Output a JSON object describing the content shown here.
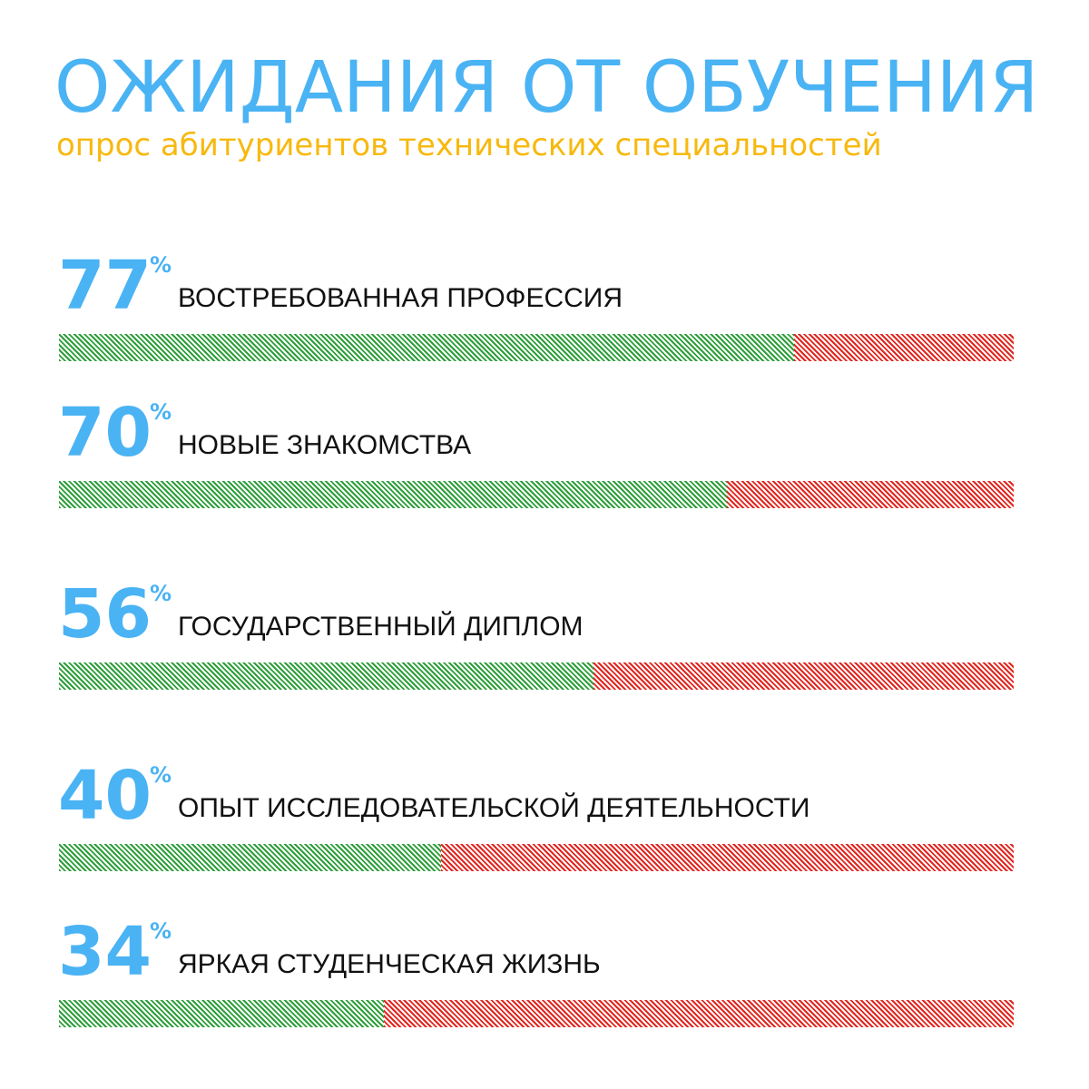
{
  "header": {
    "title": "ОЖИДАНИЯ ОТ ОБУЧЕНИЯ",
    "subtitle": "опрос абитуриентов технических специальностей"
  },
  "colors": {
    "accent": "#4ab3f4",
    "subtitle": "#f7b90f",
    "bar_yes": "#2e9e3a",
    "bar_no": "#e0261f"
  },
  "chart_data": {
    "type": "bar",
    "title": "ОЖИДАНИЯ ОТ ОБУЧЕНИЯ",
    "subtitle": "опрос абитуриентов технических специальностей",
    "ylim": [
      0,
      100
    ],
    "unit": "%",
    "categories": [
      "ВОСТРЕБОВАННАЯ ПРОФЕССИЯ",
      "НОВЫЕ ЗНАКОМСТВА",
      "ГОСУДАРСТВЕННЫЙ ДИПЛОМ",
      "ОПЫТ ИССЛЕДОВАТЕЛЬСКОЙ ДЕЯТЕЛЬНОСТИ",
      "ЯРКАЯ СТУДЕНЧЕСКАЯ ЖИЗНЬ"
    ],
    "values": [
      77,
      70,
      56,
      40,
      34
    ],
    "items": [
      {
        "percent": "77",
        "sign": "%",
        "label": "ВОСТРЕБОВАННАЯ ПРОФЕССИЯ",
        "value": 77
      },
      {
        "percent": "70",
        "sign": "%",
        "label": "НОВЫЕ ЗНАКОМСТВА",
        "value": 70
      },
      {
        "percent": "56",
        "sign": "%",
        "label": "ГОСУДАРСТВЕННЫЙ ДИПЛОМ",
        "value": 56
      },
      {
        "percent": "40",
        "sign": "%",
        "label": "ОПЫТ ИССЛЕДОВАТЕЛЬСКОЙ ДЕЯТЕЛЬНОСТИ",
        "value": 40
      },
      {
        "percent": "34",
        "sign": "%",
        "label": "ЯРКАЯ СТУДЕНЧЕСКАЯ ЖИЗНЬ",
        "value": 34
      }
    ]
  }
}
